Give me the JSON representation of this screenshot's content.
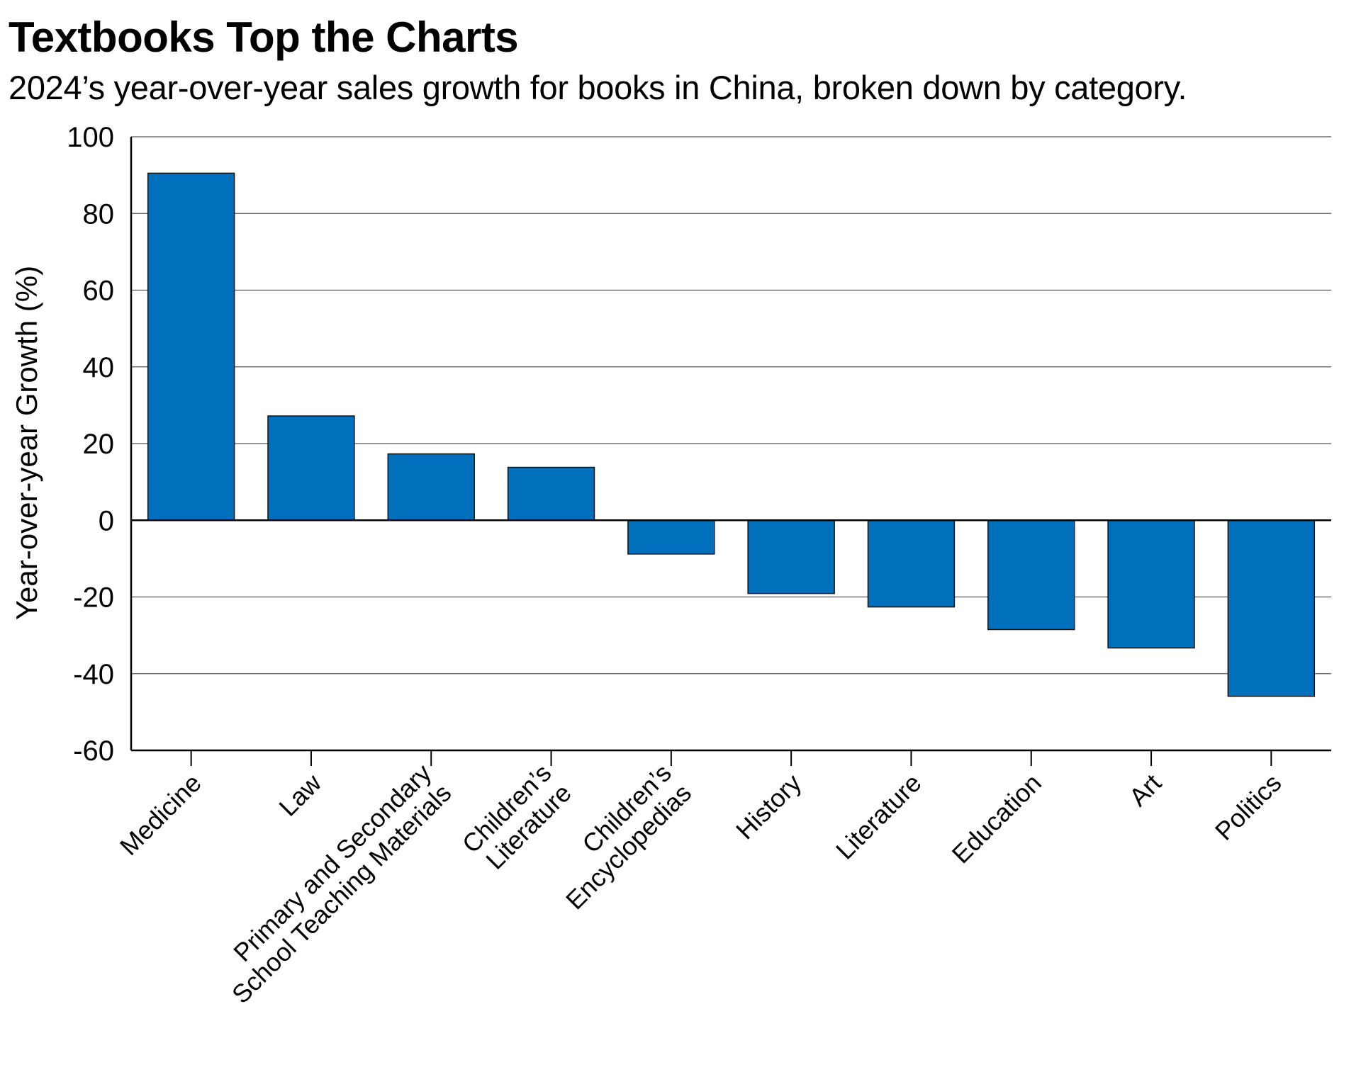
{
  "chart_data": {
    "type": "bar",
    "title": "Textbooks Top the Charts",
    "subtitle": "2024’s year-over-year sales growth for books in China, broken down by category.",
    "xlabel": "",
    "ylabel": "Year-over-year Growth (%)",
    "ylim": [
      -60,
      100
    ],
    "yticks": [
      100,
      80,
      60,
      40,
      20,
      0,
      -20,
      -40,
      -60
    ],
    "grid": true,
    "legend": "none",
    "bar_color": "#0070bd",
    "categories": [
      [
        "Medicine"
      ],
      [
        "Law"
      ],
      [
        "Primary and Secondary",
        "School Teaching Materials"
      ],
      [
        "Children’s",
        "Literature"
      ],
      [
        "Children’s",
        "Encyclopedias"
      ],
      [
        "History"
      ],
      [
        "Literature"
      ],
      [
        "Education"
      ],
      [
        "Art"
      ],
      [
        "Politics"
      ]
    ],
    "values": [
      90.5,
      27.2,
      17.3,
      13.8,
      -8.8,
      -19.1,
      -22.6,
      -28.5,
      -33.3,
      -45.9
    ]
  }
}
